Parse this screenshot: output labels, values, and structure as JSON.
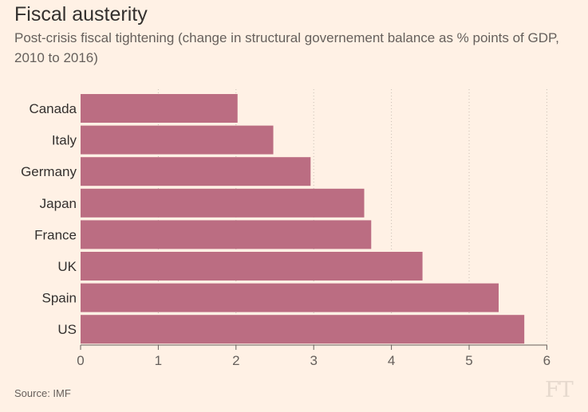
{
  "header": {
    "title": "Fiscal austerity",
    "subtitle": "Post-crisis fiscal tightening (change in structural governement balance as % points of GDP, 2010 to 2016)"
  },
  "chart_data": {
    "type": "bar",
    "orientation": "horizontal",
    "title": "Fiscal austerity",
    "subtitle": "Post-crisis fiscal tightening (change in structural governement balance as % points of GDP, 2010 to 2016)",
    "categories": [
      "Canada",
      "Italy",
      "Germany",
      "Japan",
      "France",
      "UK",
      "Spain",
      "US"
    ],
    "values": [
      2.02,
      2.48,
      2.96,
      3.65,
      3.74,
      4.4,
      5.38,
      5.71
    ],
    "xlabel": "",
    "ylabel": "",
    "xlim": [
      0,
      6
    ],
    "xticks": [
      0,
      1,
      2,
      3,
      4,
      5,
      6
    ],
    "grid": "vertical-dotted",
    "bar_color": "#bb6d82"
  },
  "footer": {
    "source": "Source: IMF",
    "logo": "FT"
  }
}
